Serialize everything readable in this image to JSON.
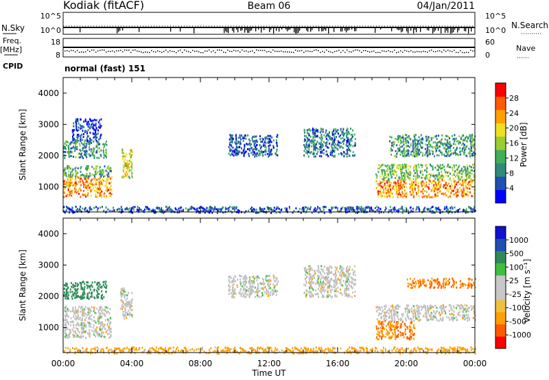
{
  "header": {
    "station": "Kodiak (fitACF)",
    "beam": "Beam 06",
    "date": "04/Jan/2011"
  },
  "labels": {
    "nsky": "N.Sky",
    "nsearch": "N.Search",
    "freq": "Freq.",
    "mhz": "[MHz]",
    "nave": "Nave",
    "cpid": "CPID",
    "cpid_value": "normal (fast) 151",
    "nsky_ticks": [
      "10^5",
      "10^0"
    ],
    "nsearch_ticks": [
      "10^5",
      "10^0"
    ],
    "freq_ticks": [
      "18",
      "8"
    ],
    "nave_ticks": [
      "60",
      "0"
    ]
  },
  "colors": {
    "power": [
      "#0000ff",
      "#2050b0",
      "#2f8a7a",
      "#3faf5a",
      "#9acd32",
      "#f0e020",
      "#ffa000",
      "#ff5a00",
      "#ff0000"
    ],
    "velocity": [
      "#ff0000",
      "#ff5a00",
      "#ffa000",
      "#f0c040",
      "#c8c8c8",
      "#c8c8c8",
      "#3fbf3f",
      "#2f8a5a",
      "#1f4fb0",
      "#1010d0"
    ],
    "ground_scatter": "#c0c0c0"
  },
  "chart_data": [
    {
      "type": "heatmap",
      "name": "power",
      "ylabel": "Slant Range [km]",
      "xlabel": "",
      "xlim": [
        0,
        24
      ],
      "ylim": [
        200,
        4500
      ],
      "yticks": [
        1000,
        2000,
        3000,
        4000
      ],
      "colorbar_label": "Power [dB]",
      "colorbar_ticks": [
        4,
        8,
        12,
        16,
        20,
        24,
        28
      ],
      "colorbar_range": [
        0,
        32
      ],
      "regions": [
        {
          "t0": 0.0,
          "t1": 2.8,
          "r0": 700,
          "r1": 1350,
          "value": 24
        },
        {
          "t0": 0.0,
          "t1": 2.8,
          "r0": 1350,
          "r1": 1700,
          "value": 12
        },
        {
          "t0": 0.0,
          "t1": 2.5,
          "r0": 1950,
          "r1": 2500,
          "value": 10
        },
        {
          "t0": 0.5,
          "t1": 2.2,
          "r0": 2500,
          "r1": 3200,
          "value": 4
        },
        {
          "t0": 3.4,
          "t1": 4.0,
          "r0": 1300,
          "r1": 2300,
          "value": 18
        },
        {
          "t0": 9.6,
          "t1": 12.5,
          "r0": 2000,
          "r1": 2700,
          "value": 6
        },
        {
          "t0": 14.0,
          "t1": 17.0,
          "r0": 2000,
          "r1": 2900,
          "value": 8
        },
        {
          "t0": 18.2,
          "t1": 24.0,
          "r0": 700,
          "r1": 1250,
          "value": 24
        },
        {
          "t0": 18.2,
          "t1": 24.0,
          "r0": 1250,
          "r1": 1750,
          "value": 14
        },
        {
          "t0": 19.0,
          "t1": 24.0,
          "r0": 2000,
          "r1": 2700,
          "value": 10
        },
        {
          "t0": 0.0,
          "t1": 24.0,
          "r0": 200,
          "r1": 400,
          "value": 6
        }
      ]
    },
    {
      "type": "heatmap",
      "name": "velocity",
      "ylabel": "Slant Range [km]",
      "xlabel": "Time UT",
      "xlim": [
        0,
        24
      ],
      "ylim": [
        200,
        4500
      ],
      "yticks": [
        1000,
        2000,
        3000,
        4000
      ],
      "xticks": [
        "00:00",
        "04:00",
        "08:00",
        "12:00",
        "16:00",
        "20:00",
        "00:00"
      ],
      "colorbar_label": "Velocity [m s⁻¹]",
      "colorbar_ticks": [
        "-1000",
        "-500",
        "-100",
        "-25",
        "25",
        "100",
        "500",
        "1000"
      ],
      "regions": [
        {
          "t0": 0.0,
          "t1": 2.8,
          "r0": 700,
          "r1": 1700,
          "value": 0
        },
        {
          "t0": 0.0,
          "t1": 2.5,
          "r0": 1950,
          "r1": 2500,
          "value": 150
        },
        {
          "t0": 3.3,
          "t1": 4.0,
          "r0": 1300,
          "r1": 2300,
          "value": 0
        },
        {
          "t0": 9.6,
          "t1": 12.5,
          "r0": 2000,
          "r1": 2700,
          "value": 0
        },
        {
          "t0": 14.0,
          "t1": 17.0,
          "r0": 2000,
          "r1": 3000,
          "value": 0
        },
        {
          "t0": 18.2,
          "t1": 20.5,
          "r0": 650,
          "r1": 1250,
          "value": -100
        },
        {
          "t0": 18.2,
          "t1": 24.0,
          "r0": 1250,
          "r1": 1750,
          "value": 0
        },
        {
          "t0": 20.0,
          "t1": 24.0,
          "r0": 2300,
          "r1": 2600,
          "value": -100
        },
        {
          "t0": 0.0,
          "t1": 24.0,
          "r0": 200,
          "r1": 400,
          "value": -50
        }
      ]
    }
  ]
}
